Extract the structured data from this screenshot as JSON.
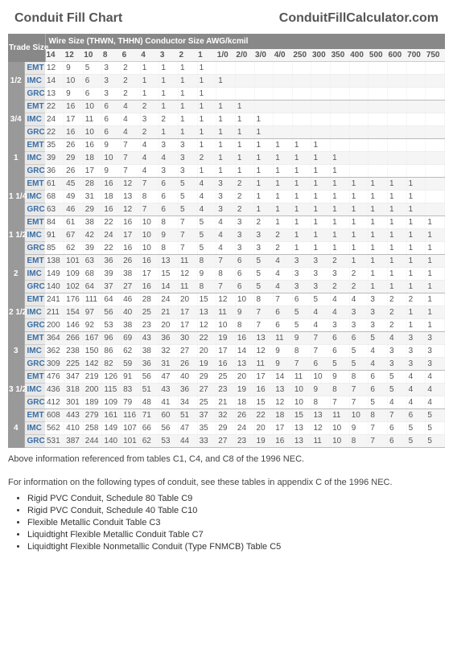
{
  "header": {
    "title": "Conduit Fill Chart",
    "site": "ConduitFillCalculator.com"
  },
  "table": {
    "trade_label": "Trade Size",
    "wire_label": "Wire Size (THWN, THHN) Conductor Size AWG/kcmil",
    "wire_sizes": [
      "14",
      "12",
      "10",
      "8",
      "6",
      "4",
      "3",
      "2",
      "1",
      "1/0",
      "2/0",
      "3/0",
      "4/0",
      "250",
      "300",
      "350",
      "400",
      "500",
      "600",
      "700",
      "750"
    ],
    "groups": [
      {
        "size": "1/2",
        "rows": [
          {
            "type": "EMT",
            "vals": [
              "12",
              "9",
              "5",
              "3",
              "2",
              "1",
              "1",
              "1",
              "1",
              "",
              "",
              "",
              "",
              "",
              "",
              "",
              "",
              "",
              "",
              "",
              ""
            ]
          },
          {
            "type": "IMC",
            "vals": [
              "14",
              "10",
              "6",
              "3",
              "2",
              "1",
              "1",
              "1",
              "1",
              "1",
              "",
              "",
              "",
              "",
              "",
              "",
              "",
              "",
              "",
              "",
              ""
            ]
          },
          {
            "type": "GRC",
            "vals": [
              "13",
              "9",
              "6",
              "3",
              "2",
              "1",
              "1",
              "1",
              "1",
              "",
              "",
              "",
              "",
              "",
              "",
              "",
              "",
              "",
              "",
              "",
              ""
            ]
          }
        ]
      },
      {
        "size": "3/4",
        "rows": [
          {
            "type": "EMT",
            "vals": [
              "22",
              "16",
              "10",
              "6",
              "4",
              "2",
              "1",
              "1",
              "1",
              "1",
              "1",
              "",
              "",
              "",
              "",
              "",
              "",
              "",
              "",
              "",
              ""
            ]
          },
          {
            "type": "IMC",
            "vals": [
              "24",
              "17",
              "11",
              "6",
              "4",
              "3",
              "2",
              "1",
              "1",
              "1",
              "1",
              "1",
              "",
              "",
              "",
              "",
              "",
              "",
              "",
              "",
              ""
            ]
          },
          {
            "type": "GRC",
            "vals": [
              "22",
              "16",
              "10",
              "6",
              "4",
              "2",
              "1",
              "1",
              "1",
              "1",
              "1",
              "1",
              "",
              "",
              "",
              "",
              "",
              "",
              "",
              "",
              ""
            ]
          }
        ]
      },
      {
        "size": "1",
        "rows": [
          {
            "type": "EMT",
            "vals": [
              "35",
              "26",
              "16",
              "9",
              "7",
              "4",
              "3",
              "3",
              "1",
              "1",
              "1",
              "1",
              "1",
              "1",
              "1",
              "",
              "",
              "",
              "",
              "",
              ""
            ]
          },
          {
            "type": "IMC",
            "vals": [
              "39",
              "29",
              "18",
              "10",
              "7",
              "4",
              "4",
              "3",
              "2",
              "1",
              "1",
              "1",
              "1",
              "1",
              "1",
              "1",
              "",
              "",
              "",
              "",
              ""
            ]
          },
          {
            "type": "GRC",
            "vals": [
              "36",
              "26",
              "17",
              "9",
              "7",
              "4",
              "3",
              "3",
              "1",
              "1",
              "1",
              "1",
              "1",
              "1",
              "1",
              "1",
              "",
              "",
              "",
              "",
              ""
            ]
          }
        ]
      },
      {
        "size": "1 1/4",
        "rows": [
          {
            "type": "EMT",
            "vals": [
              "61",
              "45",
              "28",
              "16",
              "12",
              "7",
              "6",
              "5",
              "4",
              "3",
              "2",
              "1",
              "1",
              "1",
              "1",
              "1",
              "1",
              "1",
              "1",
              "1",
              ""
            ]
          },
          {
            "type": "IMC",
            "vals": [
              "68",
              "49",
              "31",
              "18",
              "13",
              "8",
              "6",
              "5",
              "4",
              "3",
              "2",
              "1",
              "1",
              "1",
              "1",
              "1",
              "1",
              "1",
              "1",
              "1",
              ""
            ]
          },
          {
            "type": "GRC",
            "vals": [
              "63",
              "46",
              "29",
              "16",
              "12",
              "7",
              "6",
              "5",
              "4",
              "3",
              "2",
              "1",
              "1",
              "1",
              "1",
              "1",
              "1",
              "1",
              "1",
              "1",
              ""
            ]
          }
        ]
      },
      {
        "size": "1 1/2",
        "rows": [
          {
            "type": "EMT",
            "vals": [
              "84",
              "61",
              "38",
              "22",
              "16",
              "10",
              "8",
              "7",
              "5",
              "4",
              "3",
              "2",
              "1",
              "1",
              "1",
              "1",
              "1",
              "1",
              "1",
              "1",
              "1"
            ]
          },
          {
            "type": "IMC",
            "vals": [
              "91",
              "67",
              "42",
              "24",
              "17",
              "10",
              "9",
              "7",
              "5",
              "4",
              "3",
              "3",
              "2",
              "1",
              "1",
              "1",
              "1",
              "1",
              "1",
              "1",
              "1"
            ]
          },
          {
            "type": "GRC",
            "vals": [
              "85",
              "62",
              "39",
              "22",
              "16",
              "10",
              "8",
              "7",
              "5",
              "4",
              "3",
              "3",
              "2",
              "1",
              "1",
              "1",
              "1",
              "1",
              "1",
              "1",
              "1"
            ]
          }
        ]
      },
      {
        "size": "2",
        "rows": [
          {
            "type": "EMT",
            "vals": [
              "138",
              "101",
              "63",
              "36",
              "26",
              "16",
              "13",
              "11",
              "8",
              "7",
              "6",
              "5",
              "4",
              "3",
              "3",
              "2",
              "1",
              "1",
              "1",
              "1",
              "1"
            ]
          },
          {
            "type": "IMC",
            "vals": [
              "149",
              "109",
              "68",
              "39",
              "38",
              "17",
              "15",
              "12",
              "9",
              "8",
              "6",
              "5",
              "4",
              "3",
              "3",
              "3",
              "2",
              "1",
              "1",
              "1",
              "1"
            ]
          },
          {
            "type": "GRC",
            "vals": [
              "140",
              "102",
              "64",
              "37",
              "27",
              "16",
              "14",
              "11",
              "8",
              "7",
              "6",
              "5",
              "4",
              "3",
              "3",
              "2",
              "2",
              "1",
              "1",
              "1",
              "1"
            ]
          }
        ]
      },
      {
        "size": "2 1/2",
        "rows": [
          {
            "type": "EMT",
            "vals": [
              "241",
              "176",
              "111",
              "64",
              "46",
              "28",
              "24",
              "20",
              "15",
              "12",
              "10",
              "8",
              "7",
              "6",
              "5",
              "4",
              "4",
              "3",
              "2",
              "2",
              "1"
            ]
          },
          {
            "type": "IMC",
            "vals": [
              "211",
              "154",
              "97",
              "56",
              "40",
              "25",
              "21",
              "17",
              "13",
              "11",
              "9",
              "7",
              "6",
              "5",
              "4",
              "4",
              "3",
              "3",
              "2",
              "1",
              "1"
            ]
          },
          {
            "type": "GRC",
            "vals": [
              "200",
              "146",
              "92",
              "53",
              "38",
              "23",
              "20",
              "17",
              "12",
              "10",
              "8",
              "7",
              "6",
              "5",
              "4",
              "3",
              "3",
              "3",
              "2",
              "1",
              "1"
            ]
          }
        ]
      },
      {
        "size": "3",
        "rows": [
          {
            "type": "EMT",
            "vals": [
              "364",
              "266",
              "167",
              "96",
              "69",
              "43",
              "36",
              "30",
              "22",
              "19",
              "16",
              "13",
              "11",
              "9",
              "7",
              "6",
              "6",
              "5",
              "4",
              "3",
              "3"
            ]
          },
          {
            "type": "IMC",
            "vals": [
              "362",
              "238",
              "150",
              "86",
              "62",
              "38",
              "32",
              "27",
              "20",
              "17",
              "14",
              "12",
              "9",
              "8",
              "7",
              "6",
              "5",
              "4",
              "3",
              "3",
              "3"
            ]
          },
          {
            "type": "GRC",
            "vals": [
              "309",
              "225",
              "142",
              "82",
              "59",
              "36",
              "31",
              "26",
              "19",
              "16",
              "13",
              "11",
              "9",
              "7",
              "6",
              "5",
              "5",
              "4",
              "3",
              "3",
              "3"
            ]
          }
        ]
      },
      {
        "size": "3 1/2",
        "rows": [
          {
            "type": "EMT",
            "vals": [
              "476",
              "347",
              "219",
              "126",
              "91",
              "56",
              "47",
              "40",
              "29",
              "25",
              "20",
              "17",
              "14",
              "11",
              "10",
              "9",
              "8",
              "6",
              "5",
              "4",
              "4"
            ]
          },
          {
            "type": "IMC",
            "vals": [
              "436",
              "318",
              "200",
              "115",
              "83",
              "51",
              "43",
              "36",
              "27",
              "23",
              "19",
              "16",
              "13",
              "10",
              "9",
              "8",
              "7",
              "6",
              "5",
              "4",
              "4"
            ]
          },
          {
            "type": "GRC",
            "vals": [
              "412",
              "301",
              "189",
              "109",
              "79",
              "48",
              "41",
              "34",
              "25",
              "21",
              "18",
              "15",
              "12",
              "10",
              "8",
              "7",
              "7",
              "5",
              "4",
              "4",
              "4"
            ]
          }
        ]
      },
      {
        "size": "4",
        "rows": [
          {
            "type": "EMT",
            "vals": [
              "608",
              "443",
              "279",
              "161",
              "116",
              "71",
              "60",
              "51",
              "37",
              "32",
              "26",
              "22",
              "18",
              "15",
              "13",
              "11",
              "10",
              "8",
              "7",
              "6",
              "5"
            ]
          },
          {
            "type": "IMC",
            "vals": [
              "562",
              "410",
              "258",
              "149",
              "107",
              "66",
              "56",
              "47",
              "35",
              "29",
              "24",
              "20",
              "17",
              "13",
              "12",
              "10",
              "9",
              "7",
              "6",
              "5",
              "5"
            ]
          },
          {
            "type": "GRC",
            "vals": [
              "531",
              "387",
              "244",
              "140",
              "101",
              "62",
              "53",
              "44",
              "33",
              "27",
              "23",
              "19",
              "16",
              "13",
              "11",
              "10",
              "8",
              "7",
              "6",
              "5",
              "5"
            ]
          }
        ]
      }
    ]
  },
  "footer": {
    "note1": "Above information referenced from tables C1, C4, and C8 of the 1996 NEC.",
    "note2": "For information on the following types of conduit, see these tables in appendix C of the 1996 NEC.",
    "bullets": [
      "Rigid PVC Conduit, Schedule 80 Table C9",
      "Rigid PVC Conduit, Schedule 40 Table C10",
      "Flexible Metallic Conduit Table C3",
      "Liquidtight Flexible Metallic Conduit Table C7",
      "Liquidtight Flexible Nonmetallic Conduit (Type FNMCB) Table C5"
    ]
  }
}
